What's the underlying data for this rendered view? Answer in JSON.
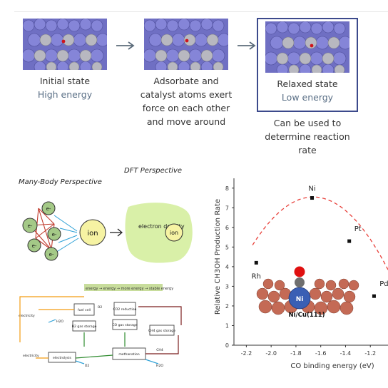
{
  "process": {
    "states": [
      {
        "title": "Initial state",
        "subtitle": "High energy"
      },
      {
        "title": "Adsorbate and catalyst atoms exert force on each other and move around",
        "subtitle": ""
      },
      {
        "title": "Relaxed state",
        "subtitle": "Low energy"
      }
    ],
    "note": "Can be used to determine reaction rate"
  },
  "sketch": {
    "many_body_title": "Many-Body Perspective",
    "dft_title": "DFT Perspective",
    "electron_label": "e-",
    "ion_label": "ion",
    "electron_density_label": "electron density",
    "flow_banner": "energy → energy → more energy → stable energy",
    "flow_labels": [
      "electricity",
      "fuel cell",
      "CO2 reduction",
      "H2 gas storage",
      "CO gas storage",
      "CH4 gas storage",
      "methanation",
      "CH4",
      "H2O",
      "O2",
      "electrolysis",
      "O2",
      "H2O",
      "electricity"
    ]
  },
  "chart_data": {
    "type": "scatter",
    "xlabel": "CO binding energy (eV)",
    "ylabel": "Relative CH3OH Production Rate",
    "xlim": [
      -2.3,
      -1.0
    ],
    "ylim": [
      0,
      8.5
    ],
    "xticks": [
      "-2.2",
      "-2.0",
      "-1.8",
      "-1.6",
      "-1.4",
      "-1.2"
    ],
    "yticks": [
      "0",
      "1",
      "2",
      "3",
      "4",
      "5",
      "6",
      "7",
      "8"
    ],
    "points": [
      {
        "label": "Rh",
        "x": -2.12,
        "y": 4.2
      },
      {
        "label": "Ni",
        "x": -1.67,
        "y": 7.5
      },
      {
        "label": "Pt",
        "x": -1.37,
        "y": 5.3
      },
      {
        "label": "Pd",
        "x": -1.17,
        "y": 2.5
      }
    ],
    "trend_color": "#e8403a",
    "inset_label": "Ni/Cu(111)",
    "inset_atom_label": "Ni"
  }
}
